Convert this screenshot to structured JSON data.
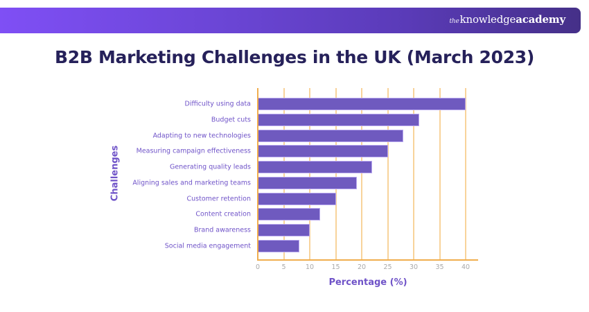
{
  "banner": {
    "brand_the": "the",
    "brand_knowledge": "knowledge",
    "brand_academy": "academy",
    "gradient_start": "#7f4ff5",
    "gradient_end": "#453088"
  },
  "header": {
    "title": "B2B Marketing Challenges in the UK (March 2023)"
  },
  "colors": {
    "bar": "#6f5abf",
    "axis": "#f0ad4e",
    "grid": "#f8d39a",
    "label": "#6f53c8",
    "title": "#26215a",
    "tick": "#a9a9a9"
  },
  "chart_data": {
    "type": "bar",
    "orientation": "horizontal",
    "title": "B2B Marketing Challenges in the UK (March 2023)",
    "xlabel": "Percentage (%)",
    "ylabel": "Challenges",
    "categories": [
      "Difficulty using data",
      "Budget cuts",
      "Adapting to new technologies",
      "Measuring campaign effectiveness",
      "Generating quality leads",
      "Aligning sales and marketing teams",
      "Customer retention",
      "Content creation",
      "Brand awareness",
      "Social media engagement"
    ],
    "values": [
      40,
      31,
      28,
      25,
      22,
      19,
      15,
      12,
      10,
      8
    ],
    "xlim": [
      0,
      42
    ],
    "xticks": [
      "0",
      "5",
      "10",
      "15",
      "20",
      "25",
      "30",
      "35",
      "40"
    ],
    "grid": "vertical",
    "legend": "none"
  }
}
